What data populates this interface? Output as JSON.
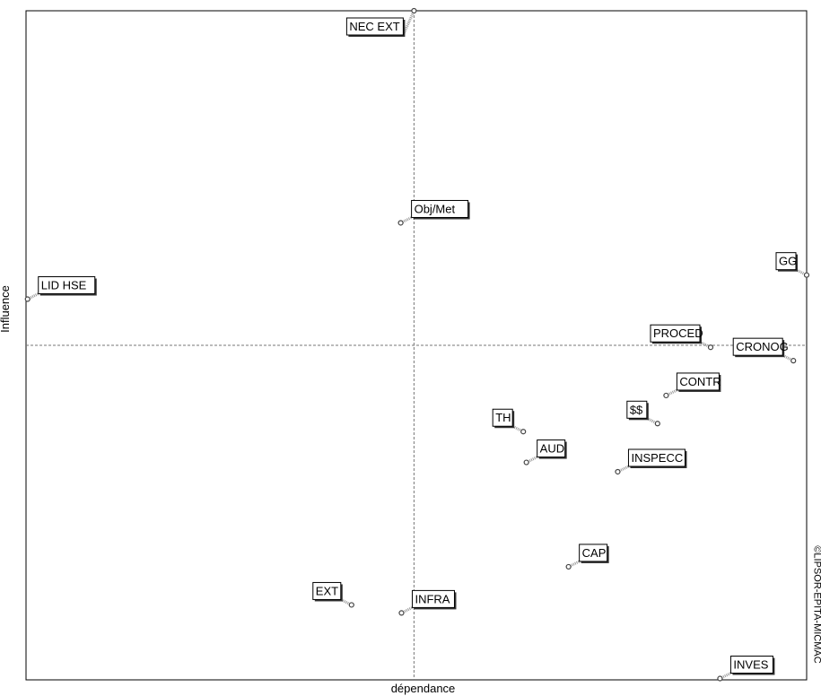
{
  "chart_data": {
    "type": "scatter",
    "xlabel": "dépendance",
    "ylabel": "Influence",
    "copyright": "©LIPSOR-EPITA-MICMAC",
    "grid": false,
    "ylim": [
      0,
      100
    ],
    "xlim": [
      0,
      100
    ],
    "reference_lines": {
      "x": 49.7,
      "y": 50.0
    },
    "points": [
      {
        "label": "NEC EXT",
        "x": 49.7,
        "y": 100.0,
        "label_side": "left"
      },
      {
        "label": "Obj/Met",
        "x": 48.0,
        "y": 68.3,
        "label_side": "right"
      },
      {
        "label": "LID HSE",
        "x": 0.2,
        "y": 56.9,
        "label_side": "right"
      },
      {
        "label": "GG",
        "x": 100.0,
        "y": 60.5,
        "label_side": "left"
      },
      {
        "label": "PROCED",
        "x": 87.7,
        "y": 49.7,
        "label_side": "left"
      },
      {
        "label": "CRONOG",
        "x": 98.3,
        "y": 47.7,
        "label_side": "left"
      },
      {
        "label": "CONTR",
        "x": 82.0,
        "y": 42.5,
        "label_side": "right"
      },
      {
        "label": "$$",
        "x": 80.9,
        "y": 38.3,
        "label_side": "left"
      },
      {
        "label": "INSPECC",
        "x": 75.8,
        "y": 31.1,
        "label_side": "right"
      },
      {
        "label": "TH",
        "x": 63.7,
        "y": 37.1,
        "label_side": "left"
      },
      {
        "label": "AUD",
        "x": 64.1,
        "y": 32.5,
        "label_side": "right"
      },
      {
        "label": "CAP",
        "x": 69.5,
        "y": 16.9,
        "label_side": "right"
      },
      {
        "label": "INFRA",
        "x": 48.1,
        "y": 10.0,
        "label_side": "right"
      },
      {
        "label": "EXT",
        "x": 41.7,
        "y": 11.2,
        "label_side": "left"
      },
      {
        "label": "INVES",
        "x": 88.9,
        "y": 0.2,
        "label_side": "right"
      }
    ]
  }
}
